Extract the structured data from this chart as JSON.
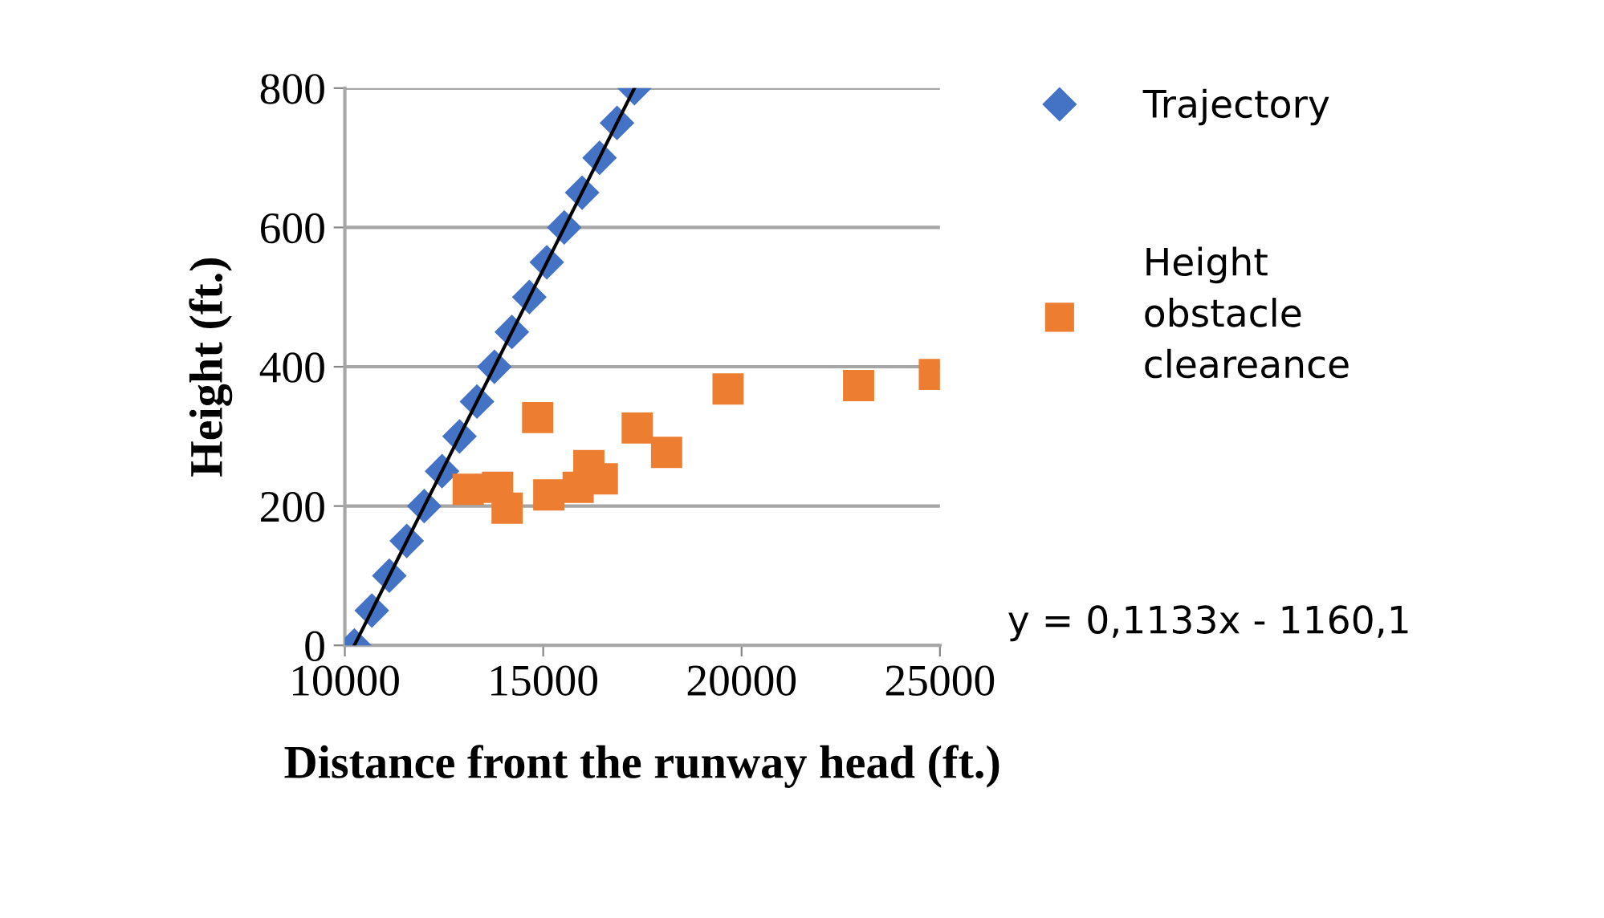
{
  "chart_data": {
    "type": "scatter",
    "xlabel": "Distance front the runway head (ft.)",
    "ylabel": "Height (ft.)",
    "xlim": [
      10000,
      25000
    ],
    "xticks": [
      10000,
      15000,
      20000,
      25000
    ],
    "ylim": [
      0,
      800
    ],
    "yticks": [
      0,
      200,
      400,
      600,
      800
    ],
    "grid": "y",
    "legend": "right",
    "series": [
      {
        "name": "Trajectory",
        "color": "#4472c4",
        "marker": "diamond",
        "x": [
          10240,
          10680,
          11120,
          11560,
          12000,
          12450,
          12890,
          13330,
          13770,
          14210,
          14650,
          15090,
          15530,
          15980,
          16420,
          16860,
          17300
        ],
        "values": [
          0,
          50,
          100,
          150,
          200,
          250,
          300,
          350,
          400,
          450,
          500,
          550,
          600,
          650,
          700,
          750,
          800
        ]
      },
      {
        "name": "Height obstacle cleareance",
        "color": "#ed7d31",
        "marker": "square",
        "x": [
          13110,
          13850,
          14090,
          14800,
          15140,
          15880,
          16150,
          16490,
          14860,
          17370,
          18110,
          19660,
          22950,
          24860
        ],
        "values": [
          224,
          227,
          197,
          null,
          216,
          227,
          258,
          239,
          327,
          312,
          277,
          368,
          373,
          389
        ]
      },
      {
        "type": "line",
        "color": "#000000",
        "marker": "none",
        "line_style": "solid",
        "x": [
          10240,
          17300
        ],
        "values": [
          0,
          800
        ]
      }
    ],
    "annotations": [
      "y = 0,1133x - 1160,1"
    ]
  }
}
